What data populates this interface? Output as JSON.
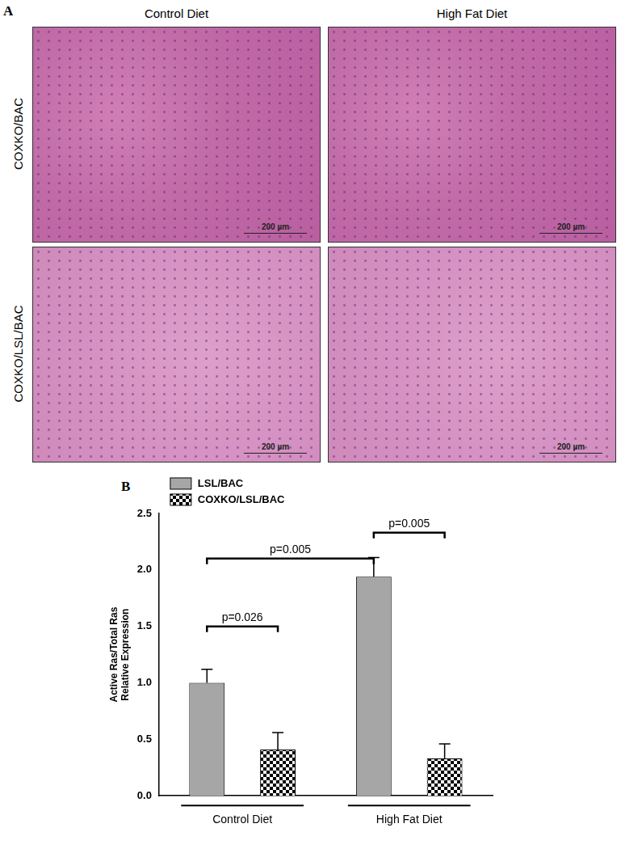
{
  "panel_a": {
    "label": "A",
    "columns": [
      "Control Diet",
      "High Fat Diet"
    ],
    "rows": [
      "COXKO/BAC",
      "COXKO/LSL/BAC"
    ],
    "scale_bar": "200 µm"
  },
  "chart_data": {
    "type": "bar",
    "panel_label": "B",
    "categories": [
      "Control Diet",
      "High Fat Diet"
    ],
    "series": [
      {
        "name": "LSL/BAC",
        "color": "#a6a6a6",
        "values": [
          1.0,
          1.94
        ],
        "errors": [
          0.12,
          0.17
        ]
      },
      {
        "name": "COXKO/LSL/BAC",
        "color": "#000000",
        "marker": "checkered",
        "values": [
          0.41,
          0.33
        ],
        "errors": [
          0.15,
          0.13
        ]
      }
    ],
    "y_label": [
      "Active Ras/Total Ras",
      "Relative Expression"
    ],
    "ylim": [
      0,
      2.5
    ],
    "yticks": [
      {
        "value": 0,
        "label": "0.0"
      },
      {
        "value": 0.5,
        "label": "0.5"
      },
      {
        "value": 1,
        "label": "1.0"
      },
      {
        "value": 1.5,
        "label": "1.5"
      },
      {
        "value": 2,
        "label": "2.0"
      },
      {
        "value": 2.5,
        "label": "2.5"
      }
    ],
    "grid": false,
    "legend": "upper left",
    "annotations": [
      {
        "text": "p=0.026",
        "y": 1.5,
        "from": {
          "category": "Control Diet",
          "series": "LSL/BAC"
        },
        "to": {
          "category": "Control Diet",
          "series": "COXKO/LSL/BAC"
        }
      },
      {
        "text": "p=0.005",
        "y": 2.1,
        "from": {
          "category": "Control Diet",
          "series": "LSL/BAC"
        },
        "to": {
          "category": "High Fat Diet",
          "series": "LSL/BAC"
        }
      },
      {
        "text": "p=0.005",
        "y": 2.33,
        "from": {
          "category": "High Fat Diet",
          "series": "LSL/BAC"
        },
        "to": {
          "category": "High Fat Diet",
          "series": "COXKO/LSL/BAC"
        }
      }
    ]
  }
}
